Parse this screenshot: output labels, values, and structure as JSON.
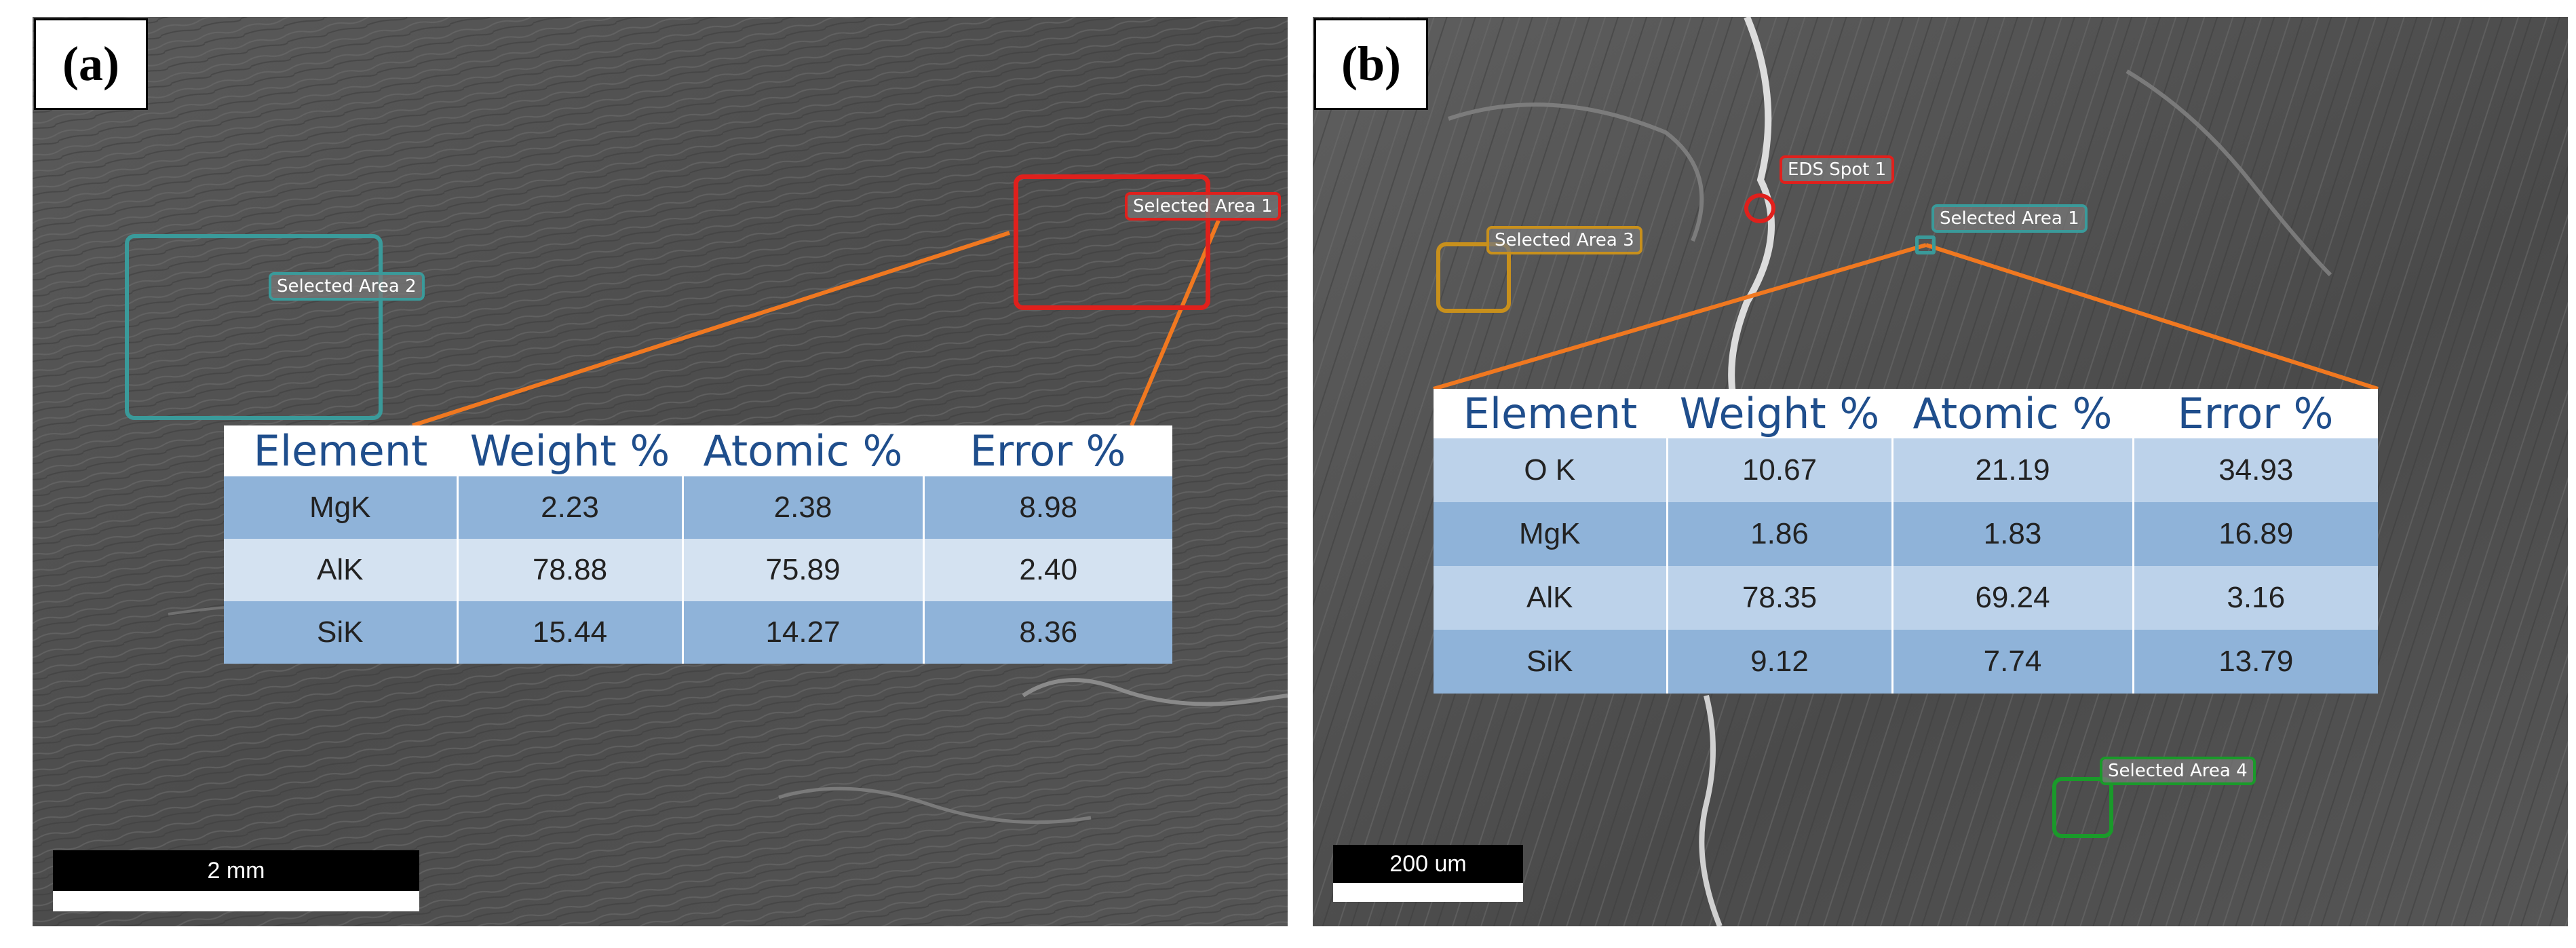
{
  "panels": [
    {
      "label": "(a)",
      "rois": [
        {
          "label": "Selected Area 1",
          "color": "#e0201c"
        },
        {
          "label": "Selected Area 2",
          "color": "#3a9a9a"
        }
      ],
      "table": {
        "headers": [
          "Element",
          "Weight %",
          "Atomic %",
          "Error %"
        ],
        "rows": [
          [
            "MgK",
            "2.23",
            "2.38",
            "8.98"
          ],
          [
            "AlK",
            "78.88",
            "75.89",
            "2.40"
          ],
          [
            "SiK",
            "15.44",
            "14.27",
            "8.36"
          ]
        ]
      },
      "scale_bar": "2 mm"
    },
    {
      "label": "(b)",
      "rois": [
        {
          "label": "EDS Spot 1",
          "color": "#e0201c"
        },
        {
          "label": "Selected Area 1",
          "color": "#3a9a9a"
        },
        {
          "label": "Selected Area 3",
          "color": "#c8901c"
        },
        {
          "label": "Selected Area 4",
          "color": "#1a9a2a"
        }
      ],
      "table": {
        "headers": [
          "Element",
          "Weight %",
          "Atomic %",
          "Error %"
        ],
        "rows": [
          [
            "O K",
            "10.67",
            "21.19",
            "34.93"
          ],
          [
            "MgK",
            "1.86",
            "1.83",
            "16.89"
          ],
          [
            "AlK",
            "78.35",
            "69.24",
            "3.16"
          ],
          [
            "SiK",
            "9.12",
            "7.74",
            "13.79"
          ]
        ]
      },
      "scale_bar": "200 um"
    }
  ],
  "colors": {
    "leader_line": "#f07820",
    "table_header_text": "#1f4e8c"
  }
}
